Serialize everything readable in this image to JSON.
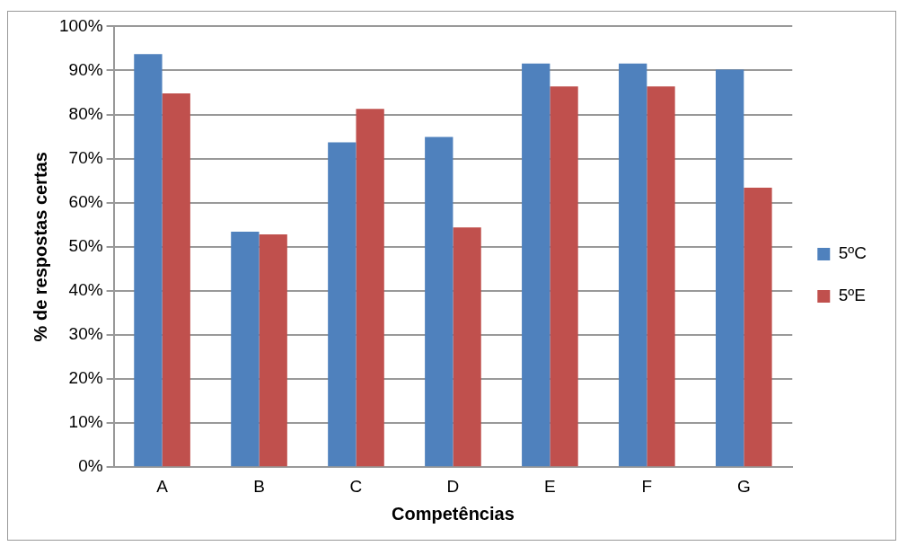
{
  "chart_data": {
    "type": "bar",
    "xlabel": "Competências",
    "ylabel": "% de respostas certas",
    "categories": [
      "A",
      "B",
      "C",
      "D",
      "E",
      "F",
      "G"
    ],
    "series": [
      {
        "name": "5ºC",
        "color": "#4f81bd",
        "values": [
          93.7,
          53.4,
          73.7,
          74.9,
          91.6,
          91.6,
          90.2
        ]
      },
      {
        "name": "5ºE",
        "color": "#c0504d",
        "values": [
          84.8,
          52.8,
          81.3,
          54.4,
          86.4,
          86.4,
          63.4
        ]
      }
    ],
    "ylim": [
      0,
      100
    ],
    "yticks": [
      {
        "value": 0,
        "label": "0%"
      },
      {
        "value": 10,
        "label": "10%"
      },
      {
        "value": 20,
        "label": "20%"
      },
      {
        "value": 30,
        "label": "30%"
      },
      {
        "value": 40,
        "label": "40%"
      },
      {
        "value": 50,
        "label": "50%"
      },
      {
        "value": 60,
        "label": "60%"
      },
      {
        "value": 70,
        "label": "70%"
      },
      {
        "value": 80,
        "label": "80%"
      },
      {
        "value": 90,
        "label": "90%"
      },
      {
        "value": 100,
        "label": "100%"
      }
    ],
    "grid": "y",
    "legend": "right"
  }
}
